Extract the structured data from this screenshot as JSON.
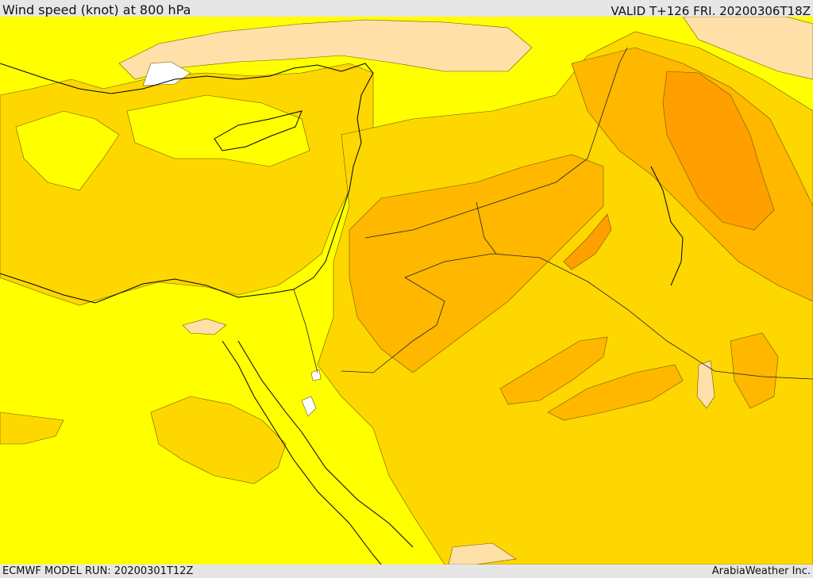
{
  "header": {
    "title": "Wind speed (knot) at 800 hPa",
    "valid": "VALID T+126 FRI. 20200306T18Z"
  },
  "footer": {
    "model_run": "ECMWF MODEL RUN: 20200301T12Z",
    "credit": "ArabiaWeather Inc."
  },
  "colors": {
    "band_low": "#ffff00",
    "band_mid": "#ffd700",
    "band_high": "#ffb700",
    "band_higher": "#ff9f00",
    "band_calm": "#ffe0a8",
    "band_none": "#ffffff",
    "coast": "#000000"
  }
}
